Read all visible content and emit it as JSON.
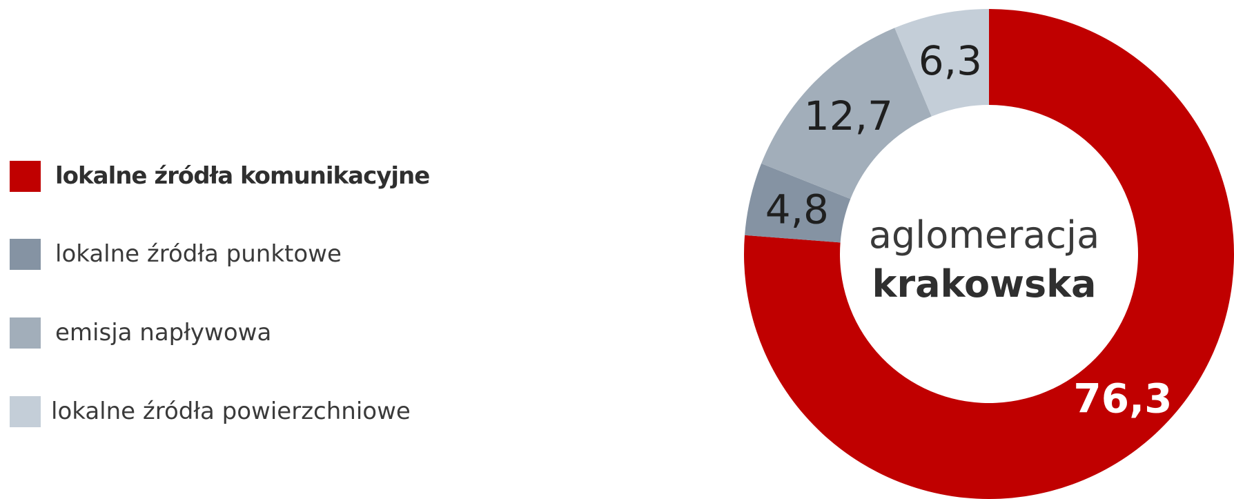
{
  "chart_data": {
    "type": "pie",
    "style": "donut",
    "center_label": [
      "aglomeracja",
      "krakowska"
    ],
    "slices": [
      {
        "label": "lokalne źródła komunikacyjne",
        "value": 76.3,
        "value_label": "76,3",
        "color": "#c00000"
      },
      {
        "label": "lokalne źródła punktowe",
        "value": 4.8,
        "value_label": "4,8",
        "color": "#8593a3"
      },
      {
        "label": "emisja napływowa",
        "value": 12.7,
        "value_label": "12,7",
        "color": "#a2aeba"
      },
      {
        "label": "lokalne źródła powierzchniowe",
        "value": 6.3,
        "value_label": "6,3",
        "color": "#c4ced8"
      }
    ],
    "legend_position": "left"
  }
}
